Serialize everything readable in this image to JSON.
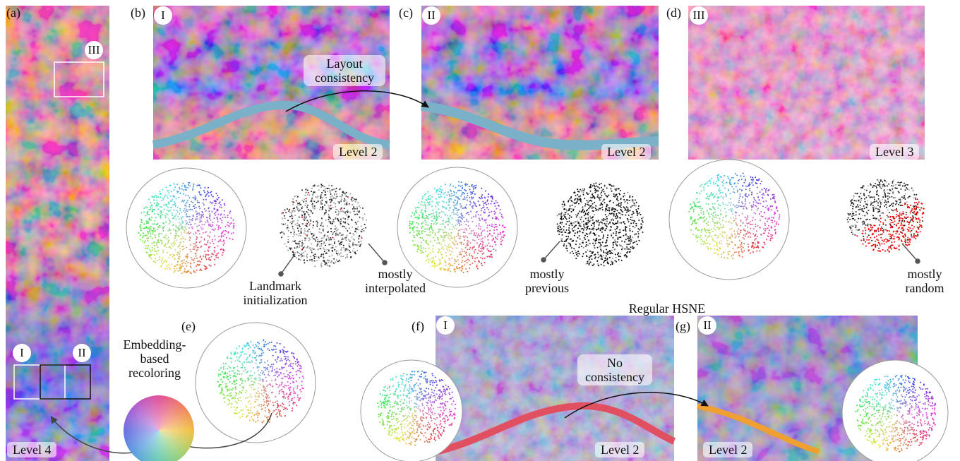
{
  "panels": {
    "a": {
      "label": "(a)",
      "level": "Level 4",
      "regions": [
        "III",
        "I",
        "II"
      ]
    },
    "b": {
      "label": "(b)",
      "region": "I",
      "level": "Level 2"
    },
    "c": {
      "label": "(c)",
      "region": "II",
      "level": "Level 2"
    },
    "d": {
      "label": "(d)",
      "region": "III",
      "level": "Level 3"
    },
    "e": {
      "label": "(e)"
    },
    "f": {
      "label": "(f)",
      "region": "I",
      "level": "Level 2"
    },
    "g": {
      "label": "(g)",
      "region": "II",
      "level": "Level 2"
    }
  },
  "annotations": {
    "layout_consistency": "Layout consistency",
    "landmark_initialization": "Landmark initialization",
    "mostly_interpolated": "mostly interpolated",
    "mostly_previous": "mostly previous",
    "mostly_random": "mostly random",
    "regular_hsne": "Regular HSNE",
    "embedding_recoloring": "Embedding-based recoloring",
    "no_consistency": "No consistency"
  }
}
